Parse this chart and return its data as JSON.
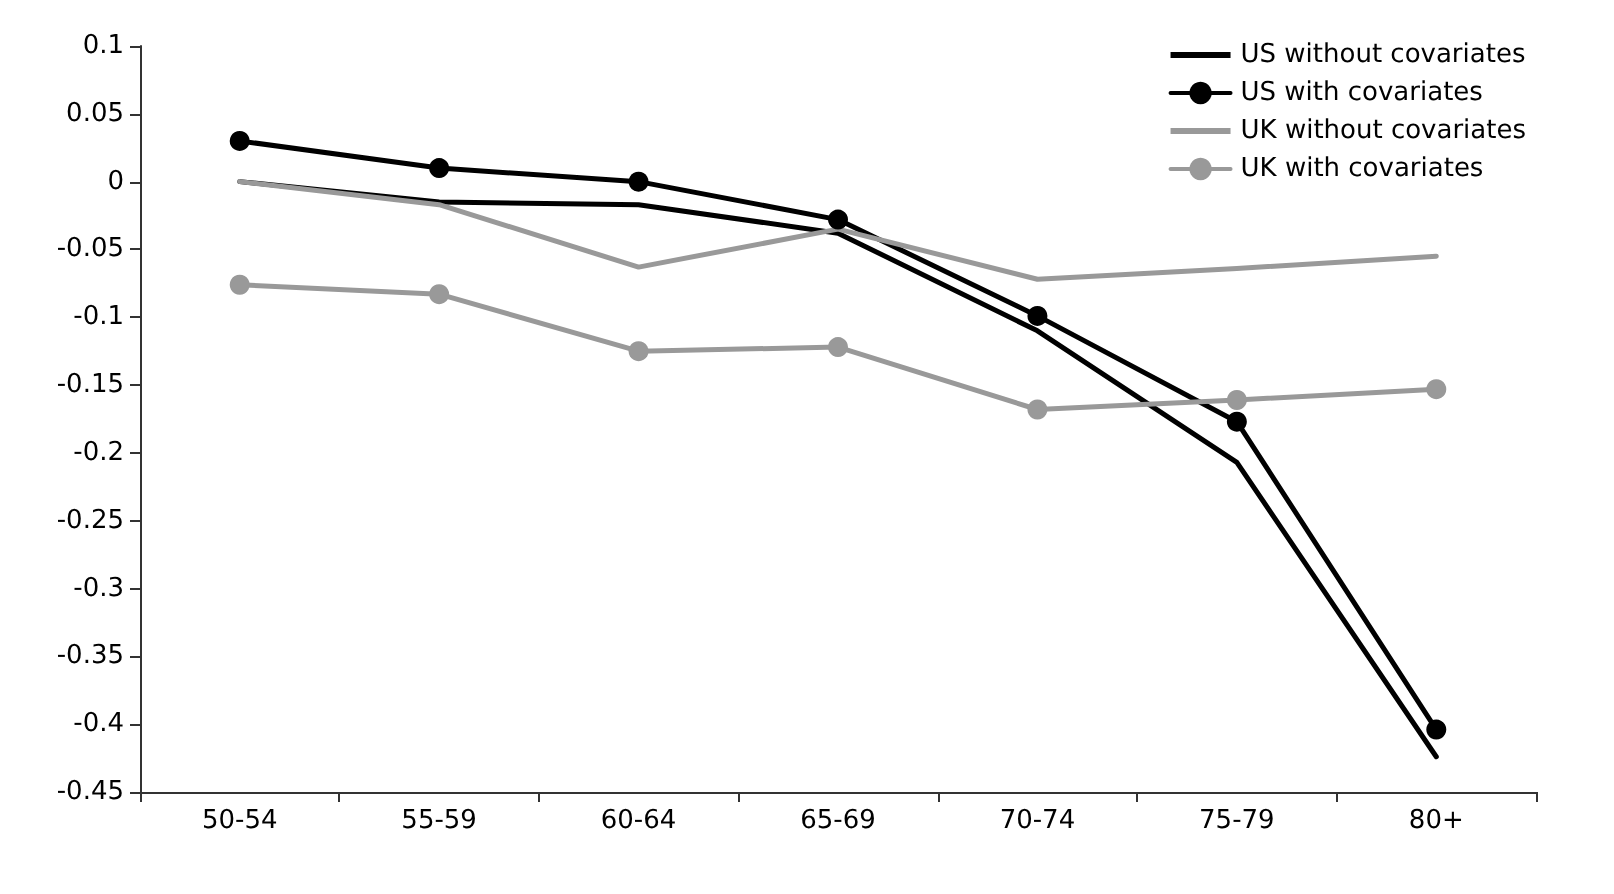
{
  "chart_data": {
    "type": "line",
    "categories": [
      "50-54",
      "55-59",
      "60-64",
      "65-69",
      "70-74",
      "75-79",
      "80+"
    ],
    "ylim": [
      -0.45,
      0.1
    ],
    "yticks": [
      -0.45,
      -0.4,
      -0.35,
      -0.3,
      -0.25,
      -0.2,
      -0.15,
      -0.1,
      -0.05,
      0,
      0.05,
      0.1
    ],
    "grid": false,
    "legend": "top right",
    "line_style": "solid",
    "series": [
      {
        "name": "US without covariates",
        "color": "#000000",
        "marker": "none",
        "values": [
          0,
          -0.015,
          -0.017,
          -0.038,
          -0.11,
          -0.207,
          -0.424
        ]
      },
      {
        "name": "US with covariates",
        "color": "#000000",
        "marker": "circle",
        "values": [
          0.03,
          0.01,
          0,
          -0.028,
          -0.099,
          -0.177,
          -0.404
        ]
      },
      {
        "name": "UK without covariates",
        "color": "#999999",
        "marker": "none",
        "values": [
          0,
          -0.017,
          -0.063,
          -0.035,
          -0.072,
          -0.064,
          -0.055
        ]
      },
      {
        "name": "UK with covariates",
        "color": "#999999",
        "marker": "circle",
        "values": [
          -0.076,
          -0.083,
          -0.125,
          -0.122,
          -0.168,
          -0.161,
          -0.153
        ]
      }
    ]
  }
}
